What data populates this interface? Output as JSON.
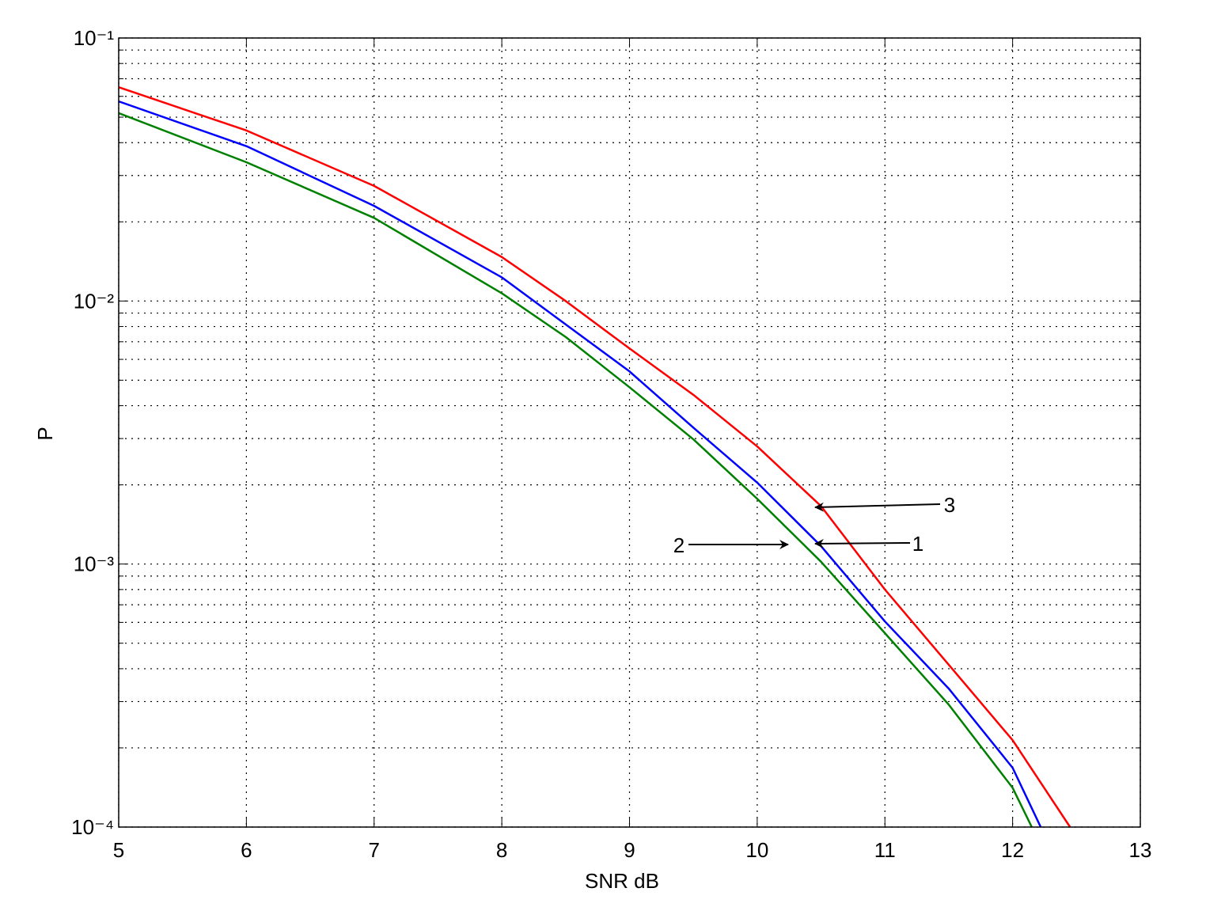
{
  "chart_data": {
    "type": "line",
    "xlabel": "SNR dB",
    "ylabel": "P",
    "xlim": [
      5,
      13
    ],
    "xticks": [
      5,
      6,
      7,
      8,
      9,
      10,
      11,
      12,
      13
    ],
    "ylim": [
      0.0001,
      0.1
    ],
    "ylog": true,
    "grid": true,
    "yticks": [
      {
        "value": 0.0001,
        "label": "10⁻⁴"
      },
      {
        "value": 0.001,
        "label": "10⁻³"
      },
      {
        "value": 0.01,
        "label": "10⁻²"
      },
      {
        "value": 0.1,
        "label": "10⁻¹"
      }
    ],
    "series": [
      {
        "color": "#ff0000",
        "x": [
          5,
          6,
          7,
          8,
          8.5,
          9,
          9.5,
          10,
          10.5,
          11,
          11.5,
          12,
          12.45
        ],
        "values": [
          0.065,
          0.0445,
          0.0274,
          0.0147,
          0.01,
          0.0066,
          0.0044,
          0.0028,
          0.00166,
          0.0008,
          0.000414,
          0.000214,
          0.0001
        ]
      },
      {
        "color": "#0000ff",
        "x": [
          5,
          6,
          7,
          8,
          8.5,
          9,
          9.5,
          10,
          10.5,
          11,
          11.5,
          12,
          12.22
        ],
        "values": [
          0.0574,
          0.0388,
          0.023,
          0.0123,
          0.00815,
          0.0054,
          0.0033,
          0.00204,
          0.00117,
          0.000605,
          0.000336,
          0.000168,
          0.0001
        ]
      },
      {
        "color": "#008000",
        "x": [
          5,
          6,
          7,
          8,
          8.5,
          9,
          9.5,
          10,
          10.5,
          11,
          11.5,
          12,
          12.15
        ],
        "values": [
          0.0518,
          0.0337,
          0.0207,
          0.0107,
          0.0073,
          0.0047,
          0.00298,
          0.00177,
          0.00102,
          0.000546,
          0.000292,
          0.000141,
          0.0001
        ]
      }
    ],
    "annotations": [
      "3",
      "1",
      "2"
    ]
  }
}
